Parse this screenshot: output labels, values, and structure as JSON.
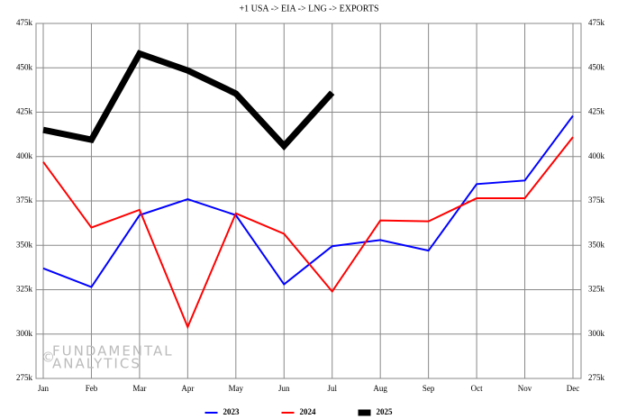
{
  "chart_data": {
    "type": "line",
    "title": "+1 USA -> EIA -> LNG -> EXPORTS",
    "categories": [
      "Jan",
      "Feb",
      "Mar",
      "Apr",
      "May",
      "Jun",
      "Jul",
      "Aug",
      "Sep",
      "Oct",
      "Nov",
      "Dec"
    ],
    "series": [
      {
        "name": "2023",
        "color": "#0000ff",
        "width": 2,
        "values": [
          337000,
          326500,
          367000,
          376000,
          367000,
          328000,
          349500,
          353000,
          347000,
          384500,
          386500,
          423000
        ]
      },
      {
        "name": "2024",
        "color": "#ff0000",
        "width": 2,
        "values": [
          397000,
          360000,
          370000,
          304000,
          368000,
          356500,
          324000,
          364000,
          363500,
          376500,
          376500,
          411000
        ]
      },
      {
        "name": "2025",
        "color": "#000000",
        "width": 7,
        "values": [
          415000,
          409500,
          458000,
          448500,
          435500,
          406000,
          436000,
          null,
          null,
          null,
          null,
          null
        ]
      }
    ],
    "ylim": [
      275000,
      475000
    ],
    "yticks": [
      {
        "value": 275000,
        "label": "275k"
      },
      {
        "value": 300000,
        "label": "300k"
      },
      {
        "value": 325000,
        "label": "325k"
      },
      {
        "value": 350000,
        "label": "350k"
      },
      {
        "value": 375000,
        "label": "375k"
      },
      {
        "value": 400000,
        "label": "400k"
      },
      {
        "value": 425000,
        "label": "425k"
      },
      {
        "value": 450000,
        "label": "450k"
      },
      {
        "value": 475000,
        "label": "475k"
      }
    ],
    "grid": true,
    "legend": "bottom",
    "watermark": {
      "symbol": "©",
      "lines": [
        "FUNDAMENTAL",
        "ANALYTICS"
      ]
    }
  }
}
